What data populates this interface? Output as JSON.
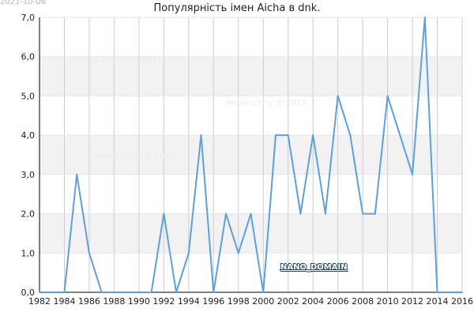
{
  "date_stamp": "2021-10-06",
  "domain_tag": "NANO_DOMAIN",
  "watermarks": [
    "Імена Світу © 2021",
    "Імена Світу © 2021",
    "Імена Світу © 2021"
  ],
  "colors": {
    "line": "#5aa0e6",
    "band": "#f2f2f2",
    "grid": "#cccccc",
    "axis": "#000000"
  },
  "chart_data": {
    "type": "line",
    "title": "Популярність імен Aicha в dnk.",
    "xlabel": "",
    "ylabel": "",
    "xlim": [
      1982,
      2016
    ],
    "ylim": [
      0,
      7
    ],
    "grid": true,
    "x_ticks": [
      "1982",
      "1984",
      "1986",
      "1988",
      "1990",
      "1992",
      "1994",
      "1996",
      "1998",
      "2000",
      "2002",
      "2004",
      "2006",
      "2008",
      "2010",
      "2012",
      "2014",
      "2016"
    ],
    "y_ticks": [
      "0,0",
      "1,0",
      "2,0",
      "3,0",
      "4,0",
      "5,0",
      "6,0",
      "7,0"
    ],
    "series": [
      {
        "x": [
          1982,
          1983,
          1984,
          1985,
          1986,
          1987,
          1988,
          1989,
          1990,
          1991,
          1992,
          1993,
          1994,
          1995,
          1996,
          1997,
          1998,
          1999,
          2000,
          2001,
          2002,
          2003,
          2004,
          2005,
          2006,
          2007,
          2008,
          2009,
          2010,
          2011,
          2012,
          2013,
          2014,
          2015,
          2016
        ],
        "values": [
          0,
          0,
          0,
          3,
          1,
          0,
          0,
          0,
          0,
          0,
          2,
          0,
          1,
          4,
          0,
          2,
          1,
          2,
          0,
          4,
          4,
          2,
          4,
          2,
          5,
          4,
          2,
          2,
          5,
          4,
          3,
          7,
          0,
          0,
          0
        ]
      }
    ]
  }
}
